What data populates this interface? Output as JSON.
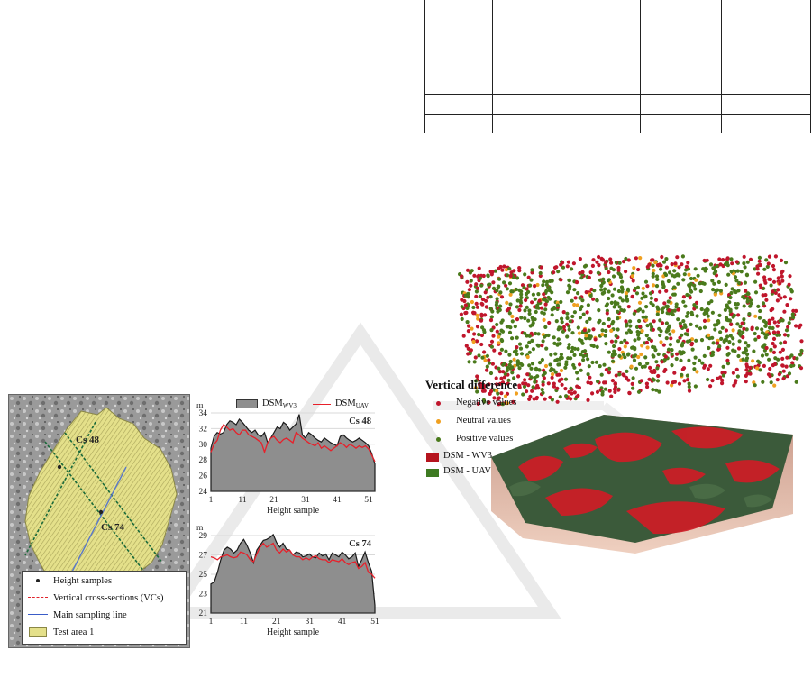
{
  "top_table": {
    "rows": 3,
    "cols": 5
  },
  "map": {
    "label_cs48": "Cs 48",
    "label_cs74": "Cs 74",
    "legend": [
      {
        "label": "Height samples"
      },
      {
        "label": "Vertical cross-sections (VCs)"
      },
      {
        "label": "Main sampling line"
      },
      {
        "label": "Test area 1"
      }
    ]
  },
  "chart_legend": {
    "wv3_main": "DSM",
    "wv3_sub": "WV3",
    "uav_main": "DSM",
    "uav_sub": "UAV"
  },
  "chart_data": [
    {
      "type": "area",
      "title": "Cs 48",
      "ylabel": "m",
      "xlabel": "Height sample",
      "ylim": [
        24,
        34
      ],
      "yticks": [
        24,
        26,
        28,
        30,
        32,
        34
      ],
      "xticks": [
        1,
        11,
        21,
        31,
        41,
        51
      ],
      "series": [
        {
          "name": "DSM WV3",
          "style": "area",
          "color": "#8e8e8e",
          "values": [
            29.5,
            31,
            31.5,
            31.3,
            31.5,
            32.5,
            33,
            32.8,
            32.5,
            33.2,
            32.8,
            32.3,
            31.8,
            31.5,
            31.8,
            31.2,
            31,
            31.5,
            30.2,
            30.8,
            31.5,
            32.2,
            32,
            32.8,
            32.5,
            31.8,
            32.2,
            32.6,
            33.8,
            31.2,
            30.8,
            31.5,
            31.2,
            30.8,
            30.5,
            30.3,
            30.8,
            30.5,
            30.2,
            30,
            29.8,
            31,
            31.2,
            30.8,
            30.5,
            30.3,
            30.5,
            30.8,
            30.5,
            30.2,
            29.8,
            28.8,
            27.5
          ]
        },
        {
          "name": "DSM UAV",
          "style": "line",
          "color": "#e8202a",
          "values": [
            29,
            30,
            30.5,
            31.8,
            32.5,
            32.2,
            31.8,
            32,
            31.5,
            31.2,
            31.8,
            31.8,
            31.2,
            31,
            30.8,
            30.5,
            30.2,
            29,
            30.2,
            30.8,
            31,
            30.5,
            30.2,
            30.6,
            30.8,
            30.5,
            30.2,
            31.5,
            31.2,
            30.8,
            30.5,
            30.2,
            30,
            29.8,
            30.2,
            29.5,
            29.8,
            29.5,
            29.2,
            29.5,
            29.8,
            30.2,
            30,
            29.6,
            30,
            29.8,
            29.5,
            29.8,
            29.6,
            29.8,
            29.4,
            28.6,
            27.8
          ]
        }
      ]
    },
    {
      "type": "area",
      "title": "Cs 74",
      "ylabel": "m",
      "xlabel": "Height sample",
      "ylim": [
        21,
        29
      ],
      "yticks": [
        21,
        23,
        25,
        27,
        29
      ],
      "xticks": [
        1,
        11,
        21,
        31,
        41,
        51
      ],
      "series": [
        {
          "name": "DSM WV3",
          "style": "area",
          "color": "#8e8e8e",
          "values": [
            24,
            24.2,
            25.2,
            26.5,
            27.5,
            27.8,
            27.6,
            27.2,
            27.5,
            28.2,
            28.6,
            28,
            27.2,
            26.2,
            27.5,
            28,
            28.5,
            28.6,
            28.8,
            29.1,
            28.3,
            27.8,
            28.2,
            27.6,
            27.5,
            27,
            27.3,
            27.2,
            26.8,
            26.9,
            27.1,
            26.8,
            26.7,
            27.2,
            26.9,
            27.1,
            26.5,
            27.2,
            27,
            26.8,
            27.3,
            27,
            26.6,
            26.8,
            27.2,
            25.8,
            26.5,
            27.3,
            26.2,
            25.3,
            21.8
          ]
        },
        {
          "name": "DSM UAV",
          "style": "line",
          "color": "#e8202a",
          "values": [
            26.8,
            26.7,
            26.5,
            26.8,
            26.9,
            27,
            26.8,
            26.7,
            26.8,
            27.3,
            27.2,
            27,
            26.5,
            26.3,
            27.1,
            27.8,
            28.2,
            27.8,
            28,
            28.2,
            27.5,
            27.2,
            27.6,
            27.3,
            27.5,
            27,
            26.8,
            26.8,
            26.5,
            26.7,
            26.5,
            26.8,
            26.9,
            26.6,
            26.5,
            26.5,
            26.2,
            26.5,
            26.4,
            26.3,
            26.6,
            26.2,
            26,
            26.2,
            26.3,
            25.6,
            25.8,
            26.2,
            25.2,
            25,
            24.6
          ]
        }
      ]
    }
  ],
  "vertical_difference": {
    "title": "Vertical difference",
    "items": [
      {
        "label": "Negative values",
        "color": "#c0162c"
      },
      {
        "label": "Neutral values",
        "color": "#f0a020"
      },
      {
        "label": "Positive values",
        "color": "#4a7a1c"
      },
      {
        "label": "DSM - WV3",
        "color": "#b5141e"
      },
      {
        "label": "DSM - UAV",
        "color": "#3e7a22"
      }
    ]
  }
}
